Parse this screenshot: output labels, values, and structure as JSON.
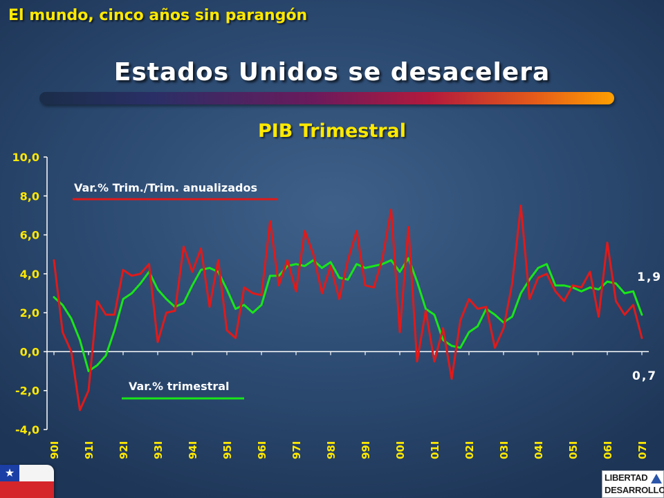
{
  "header": {
    "title": "El mundo, cinco años sin parangón"
  },
  "slide": {
    "title": "Estados Unidos se desacelera"
  },
  "colors": {
    "accent_text": "#ffe900",
    "series_red": "#e01a1a",
    "series_green": "#19e619",
    "axis": "#ffffff"
  },
  "logo": {
    "line1": "LIBERTAD",
    "line2": "DESARROLLO",
    "icon": "triangle-logo-icon"
  },
  "flag": {
    "icon": "chile-flag-icon",
    "star": "★"
  },
  "chart_data": {
    "type": "line",
    "title": "PIB Trimestral",
    "xlabel": "",
    "ylabel": "",
    "ylim": [
      -4.0,
      10.0
    ],
    "yticks": [
      "10,0",
      "8,0",
      "6,0",
      "4,0",
      "2,0",
      "0,0",
      "-2,0",
      "-4,0"
    ],
    "ytick_values": [
      10,
      8,
      6,
      4,
      2,
      0,
      -2,
      -4
    ],
    "xtick_labels": [
      "90I",
      "91I",
      "92I",
      "93I",
      "94I",
      "95I",
      "96I",
      "97I",
      "98I",
      "99I",
      "00I",
      "01I",
      "02I",
      "03I",
      "04I",
      "05I",
      "06I",
      "07I"
    ],
    "x_first": "90I",
    "x_last": "07I",
    "grid": false,
    "series": [
      {
        "name": "Var.% Trim./Trim. anualizados",
        "color": "#e01a1a",
        "values": [
          4.7,
          1.0,
          0.0,
          -3.0,
          -2.0,
          2.6,
          1.9,
          1.9,
          4.2,
          3.9,
          4.0,
          4.5,
          0.5,
          2.0,
          2.1,
          5.4,
          4.1,
          5.3,
          2.3,
          4.7,
          1.1,
          0.7,
          3.3,
          3.0,
          2.9,
          6.7,
          3.4,
          4.7,
          3.1,
          6.2,
          5.0,
          3.0,
          4.4,
          2.7,
          4.7,
          6.2,
          3.4,
          3.3,
          4.8,
          7.3,
          1.0,
          6.4,
          -0.5,
          2.1,
          -0.5,
          1.2,
          -1.4,
          1.6,
          2.7,
          2.2,
          2.3,
          0.2,
          1.2,
          3.5,
          7.5,
          2.7,
          3.8,
          4.0,
          3.1,
          2.6,
          3.4,
          3.3,
          4.1,
          1.8,
          5.6,
          2.6,
          1.9,
          2.4,
          0.7
        ],
        "end_label": "0,7"
      },
      {
        "name": "Var.% trimestral",
        "color": "#19e619",
        "values": [
          2.8,
          2.4,
          1.7,
          0.6,
          -1.0,
          -0.7,
          -0.2,
          1.1,
          2.7,
          3.0,
          3.5,
          4.1,
          3.2,
          2.7,
          2.3,
          2.5,
          3.4,
          4.2,
          4.3,
          4.1,
          3.2,
          2.2,
          2.4,
          2.0,
          2.4,
          3.9,
          3.9,
          4.4,
          4.5,
          4.4,
          4.7,
          4.3,
          4.6,
          3.8,
          3.7,
          4.5,
          4.3,
          4.4,
          4.5,
          4.7,
          4.1,
          4.8,
          3.6,
          2.2,
          1.9,
          0.6,
          0.3,
          0.2,
          1.0,
          1.3,
          2.2,
          1.9,
          1.5,
          1.8,
          3.0,
          3.7,
          4.3,
          4.5,
          3.4,
          3.4,
          3.3,
          3.1,
          3.3,
          3.2,
          3.6,
          3.5,
          3.0,
          3.1,
          1.9
        ],
        "end_label": "1,9"
      }
    ]
  }
}
